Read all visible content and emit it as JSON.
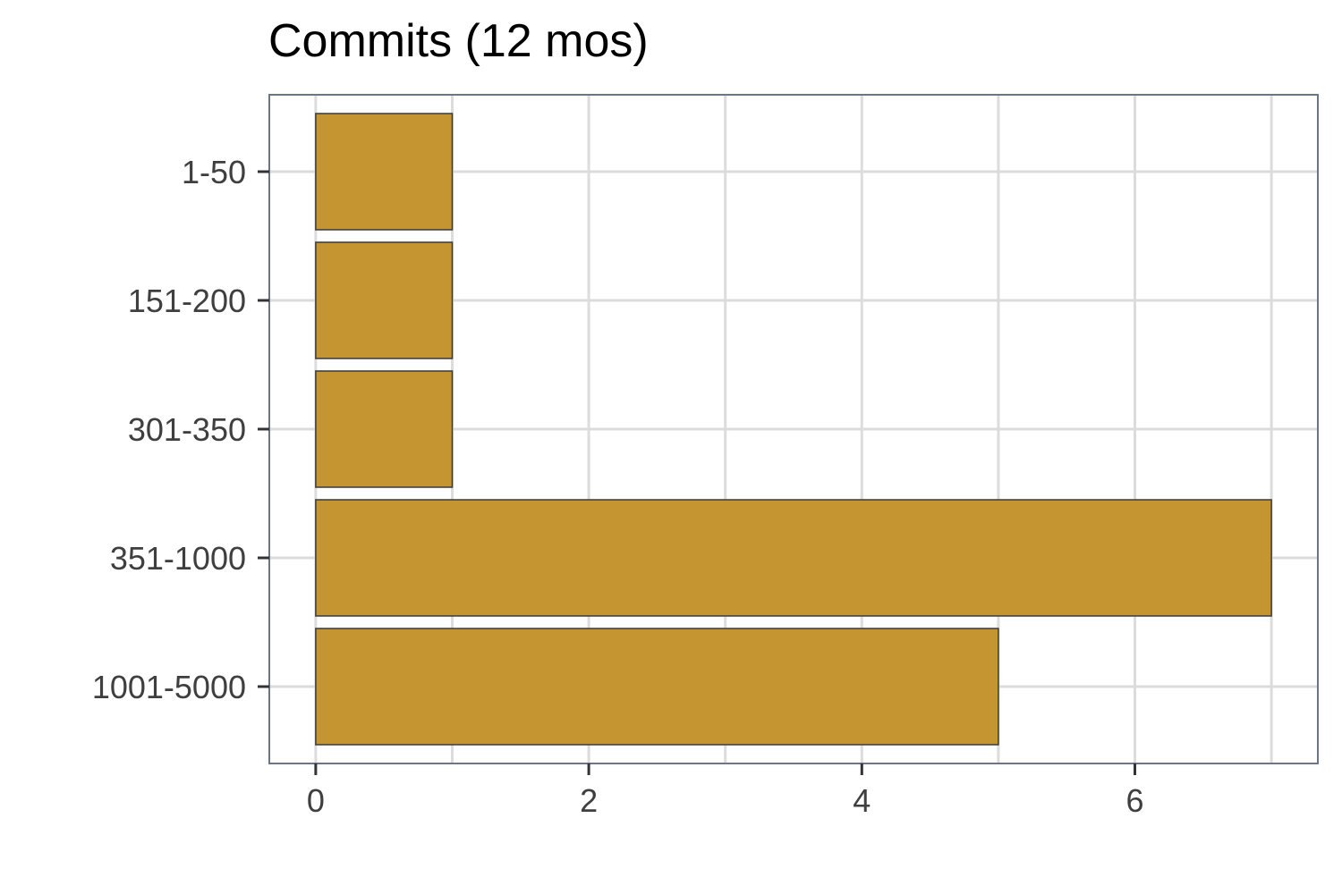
{
  "chart_data": {
    "type": "bar",
    "orientation": "horizontal",
    "title": "Commits (12 mos)",
    "xlabel": "",
    "ylabel": "",
    "categories": [
      "1-50",
      "151-200",
      "301-350",
      "351-1000",
      "1001-5000"
    ],
    "values": [
      1,
      1,
      1,
      7,
      5
    ],
    "xlim": [
      -0.34,
      7.34
    ],
    "xticks": [
      "0",
      "2",
      "4",
      "6"
    ],
    "grid": true,
    "legend": "none",
    "colors": {
      "bar_fill": "#c59531",
      "bar_stroke": "#3a3a3a",
      "grid": "#dcdcdc",
      "panel_border": "#6b7585",
      "tick_text": "#3f3f3f"
    }
  }
}
